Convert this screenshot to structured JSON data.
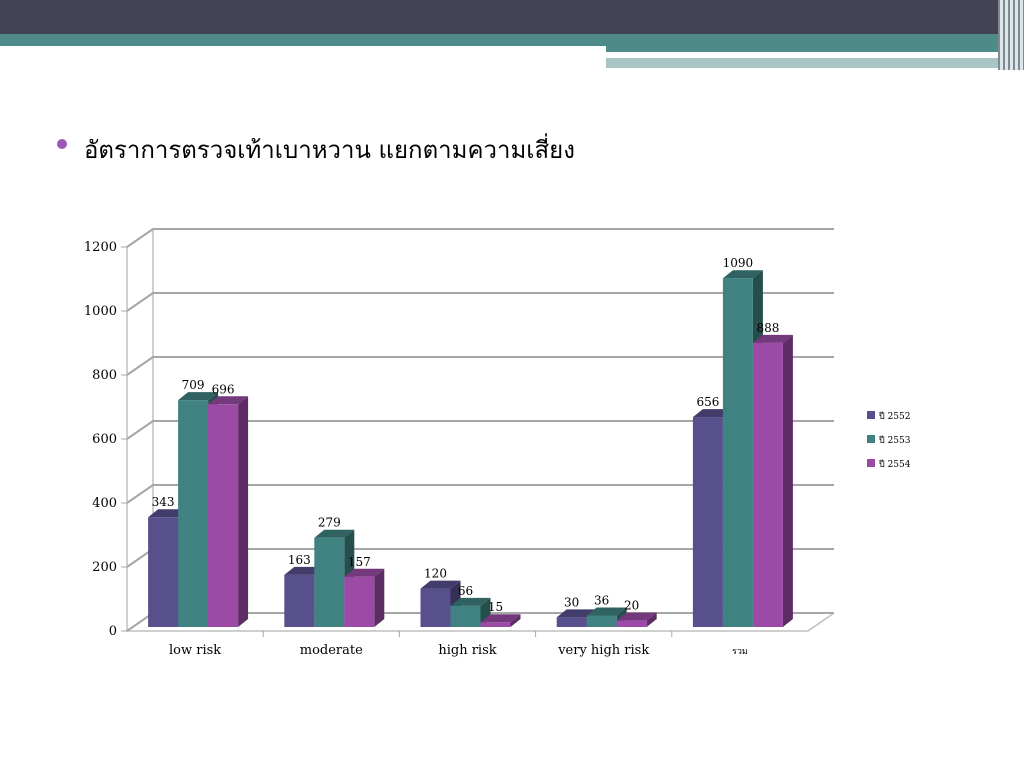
{
  "slide": {
    "heading": "อัตราการตรวจเท้าเบาหวาน แยกตามความเสี่ยง"
  },
  "chart_data": {
    "type": "bar",
    "categories": [
      "low risk",
      "moderate",
      "high risk",
      "very high risk",
      "รวม"
    ],
    "series": [
      {
        "name": "ปี 2552",
        "values": [
          343,
          163,
          120,
          30,
          656
        ],
        "color": "#58508d"
      },
      {
        "name": "ปี 2553",
        "values": [
          709,
          279,
          66,
          36,
          1090
        ],
        "color": "#3f8281"
      },
      {
        "name": "ปี 2554",
        "values": [
          696,
          157,
          15,
          20,
          888
        ],
        "color": "#9b4aa6"
      }
    ],
    "ylim": [
      0,
      1200
    ],
    "yticks": [
      0,
      200,
      400,
      600,
      800,
      1000,
      1200
    ],
    "grid": true,
    "legend": "right",
    "style": "3d-clustered-column"
  }
}
